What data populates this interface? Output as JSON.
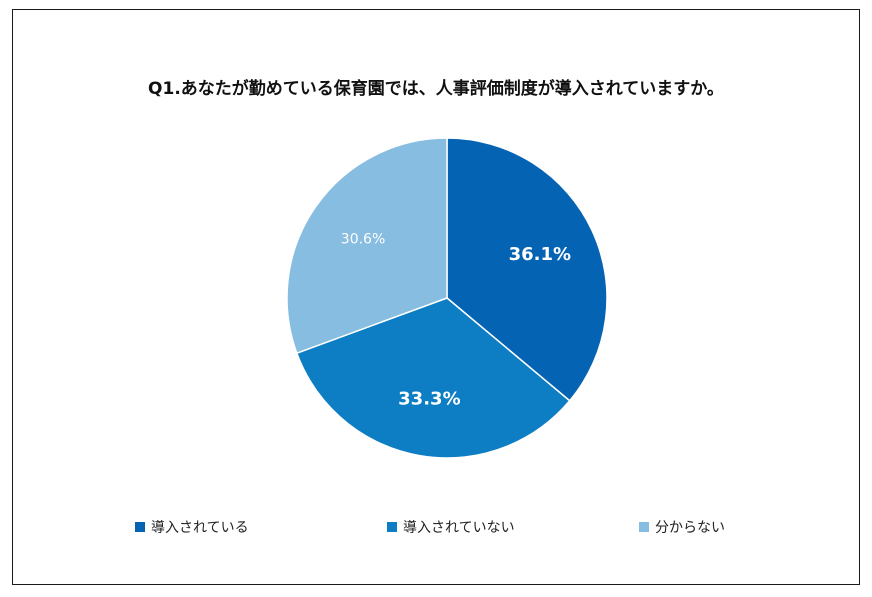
{
  "chart_data": {
    "type": "pie",
    "title": "Q1.あなたが勤めている保育園では、人事評価制度が導入されていますか。",
    "categories": [
      "導入されている",
      "導入されていない",
      "分からない"
    ],
    "values": [
      36.1,
      33.3,
      30.6
    ],
    "data_labels": [
      "36.1%",
      "33.3%",
      "30.6%"
    ],
    "colors": [
      "#0563b4",
      "#0d7dc4",
      "#86bde0"
    ],
    "label_colors": [
      "#ffffff",
      "#ffffff",
      "#ffffff"
    ],
    "start_angle_deg": 0,
    "direction": "clockwise",
    "legend_position": "bottom"
  }
}
